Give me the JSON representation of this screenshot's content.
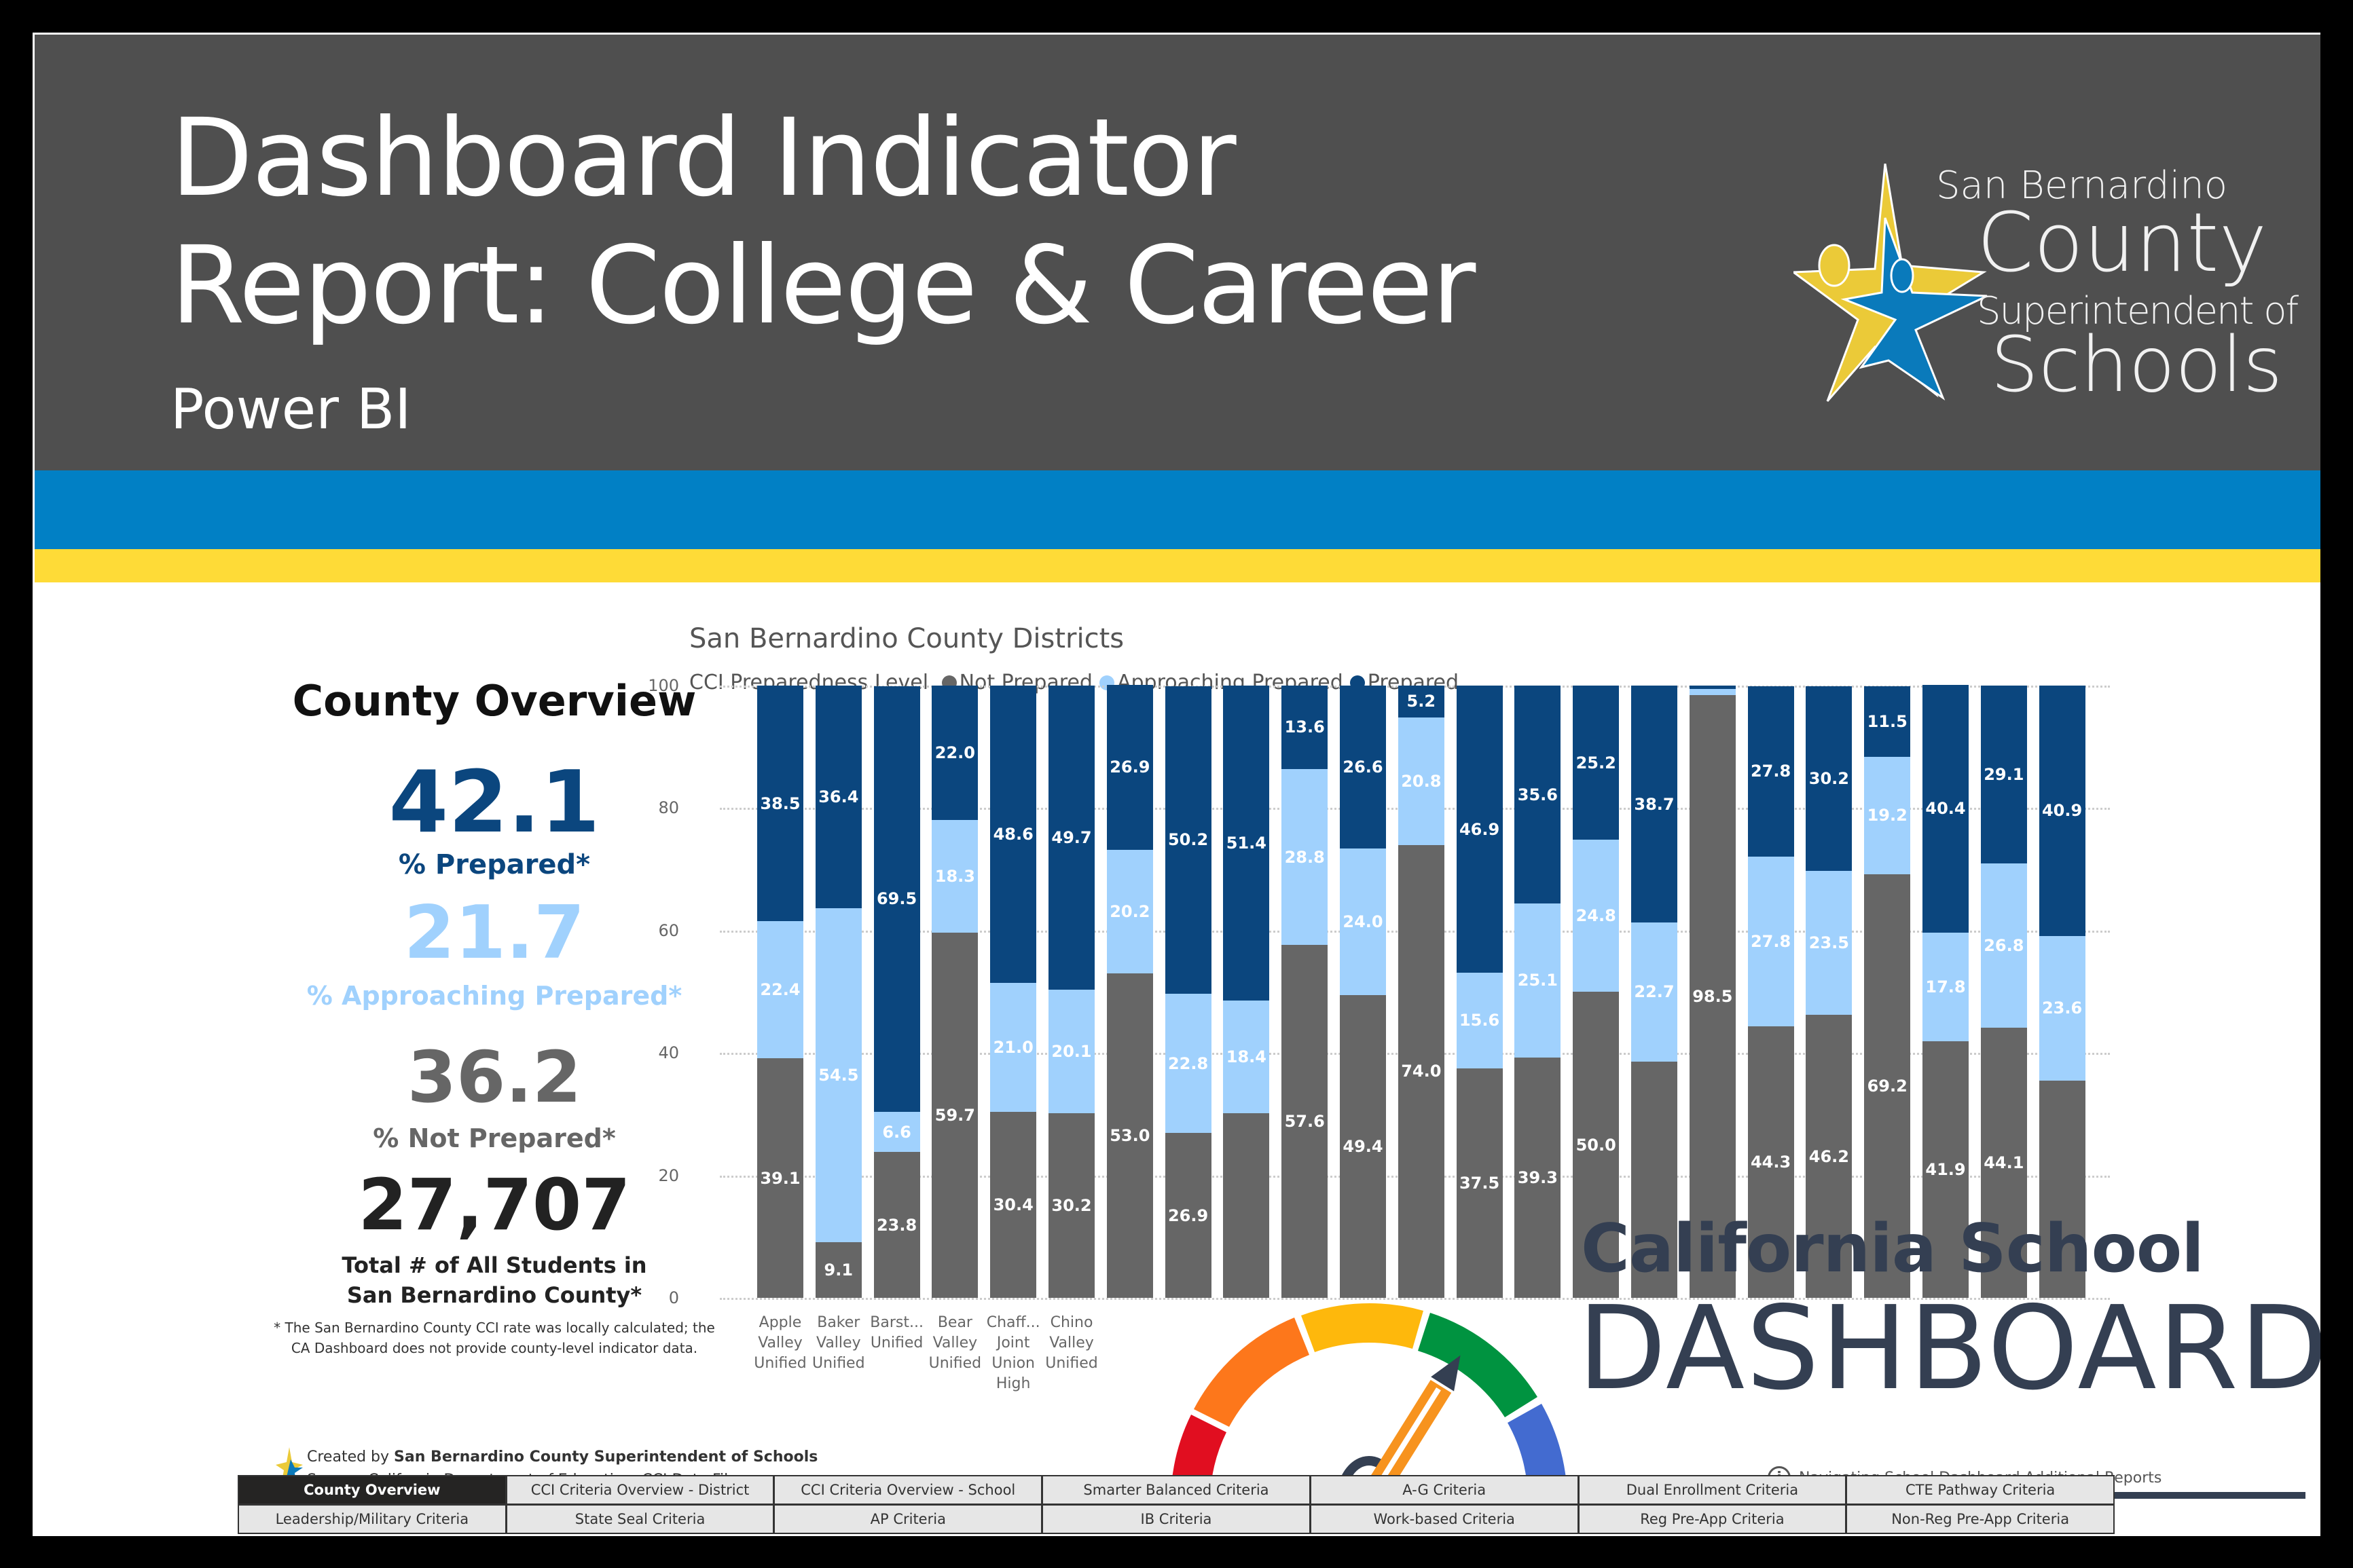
{
  "header": {
    "title_line1": "Dashboard Indicator",
    "title_line2": "Report: College & Career",
    "subtitle": "Power BI",
    "logo": {
      "line1": "San Bernardino",
      "line2": "County",
      "line3": "Superintendent of",
      "line4": "Schools",
      "icon": "star-people-icon"
    },
    "colors": {
      "header_bg": "#4f4f4f",
      "stripe_blue": "#0180c5",
      "stripe_yellow": "#fedb37"
    }
  },
  "overview": {
    "title": "County Overview",
    "prepared_value": "42.1",
    "prepared_label": "% Prepared*",
    "approaching_value": "21.7",
    "approaching_label": "% Approaching Prepared*",
    "not_prepared_value": "36.2",
    "not_prepared_label": "% Not Prepared*",
    "total_value": "27,707",
    "total_label_line1": "Total # of All Students in",
    "total_label_line2": "San Bernardino County*",
    "footnote_line1": "* The San Bernardino County CCI rate was locally calculated; the",
    "footnote_line2": "CA Dashboard does not provide county-level indicator data."
  },
  "chart_data": {
    "type": "bar",
    "stacked": true,
    "title": "San Bernardino County Districts",
    "legend_title": "CCI Preparedness Level",
    "legend_position": "top",
    "xlabel": "",
    "ylabel": "",
    "ylim": [
      0,
      100
    ],
    "yticks": [
      "0",
      "20",
      "40",
      "60",
      "80",
      "100"
    ],
    "grid": true,
    "categories": [
      [
        "Apple",
        "Valley",
        "Unified"
      ],
      [
        "Baker",
        "Valley",
        "Unified"
      ],
      [
        "Barst...",
        "Unified"
      ],
      [
        "Bear",
        "Valley",
        "Unified"
      ],
      [
        "Chaff...",
        "Joint",
        "Union",
        "High"
      ],
      [
        "Chino",
        "Valley",
        "Unified"
      ],
      [],
      [],
      [],
      [],
      [],
      [],
      [],
      [],
      [],
      [],
      [],
      [],
      [],
      [],
      [],
      [],
      []
    ],
    "series": [
      {
        "name": "Not Prepared",
        "color": "#666666",
        "values": [
          39.1,
          9.1,
          23.8,
          59.7,
          30.4,
          30.2,
          53.0,
          26.9,
          30.2,
          57.6,
          49.4,
          74.0,
          37.5,
          39.3,
          50.0,
          38.6,
          98.5,
          44.3,
          46.2,
          69.2,
          41.9,
          44.1,
          35.5
        ],
        "labels": [
          "39.1",
          "9.1",
          "23.8",
          "59.7",
          "30.4",
          "30.2",
          "53.0",
          "26.9",
          "",
          "57.6",
          "49.4",
          "74.0",
          "37.5",
          "39.3",
          "50.0",
          "",
          "98.5",
          "44.3",
          "46.2",
          "69.2",
          "41.9",
          "44.1",
          ""
        ]
      },
      {
        "name": "Approaching Prepared",
        "color": "#a0d1fd",
        "values": [
          22.4,
          54.5,
          6.6,
          18.3,
          21.0,
          20.1,
          20.2,
          22.8,
          18.4,
          28.8,
          24.0,
          20.8,
          15.6,
          25.1,
          24.8,
          22.7,
          1.0,
          27.8,
          23.5,
          19.2,
          17.8,
          26.8,
          23.6
        ],
        "labels": [
          "22.4",
          "54.5",
          "6.6",
          "18.3",
          "21.0",
          "20.1",
          "20.2",
          "22.8",
          "18.4",
          "28.8",
          "24.0",
          "20.8",
          "15.6",
          "25.1",
          "24.8",
          "22.7",
          "",
          "27.8",
          "23.5",
          "19.2",
          "17.8",
          "26.8",
          "23.6"
        ]
      },
      {
        "name": "Prepared",
        "color": "#0b467e",
        "values": [
          38.5,
          36.4,
          69.5,
          22.0,
          48.6,
          49.7,
          26.9,
          50.2,
          51.4,
          13.6,
          26.6,
          5.2,
          46.9,
          35.6,
          25.2,
          38.7,
          0.5,
          27.8,
          30.2,
          11.5,
          40.4,
          29.1,
          40.9
        ],
        "labels": [
          "38.5",
          "36.4",
          "69.5",
          "22.0",
          "48.6",
          "49.7",
          "26.9",
          "50.2",
          "51.4",
          "13.6",
          "26.6",
          "5.2",
          "46.9",
          "35.6",
          "25.2",
          "38.7",
          "",
          "27.8",
          "30.2",
          "11.5",
          "40.4",
          "29.1",
          "40.9"
        ]
      }
    ]
  },
  "overlay": {
    "line1": "California School",
    "line2": "DASHBOARD",
    "icon": "gauge-pencil-icon",
    "colors": [
      "#e10e20",
      "#fd771b",
      "#feb80c",
      "#009340",
      "#436bd0"
    ],
    "text_color": "#343f52"
  },
  "footer": {
    "created_prefix": "Created by ",
    "created_by": "San Bernardino County Superintendent of Schools",
    "source_prefix": "Source: California Department of Education, ",
    "source_link": "CCI Data Files",
    "nav_info": "Navigating School Dashboard Additional Reports",
    "nav_buttons": [
      "County Overview",
      "CCI Criteria Overview - District",
      "CCI Criteria Overview - School",
      "Smarter Balanced Criteria",
      "A-G Criteria",
      "Dual Enrollment Criteria",
      "CTE Pathway Criteria",
      "Leadership/Military Criteria",
      "State Seal Criteria",
      "AP Criteria",
      "IB Criteria",
      "Work-based Criteria",
      "Reg Pre-App Criteria",
      "Non-Reg Pre-App Criteria"
    ],
    "active_index": 0
  }
}
